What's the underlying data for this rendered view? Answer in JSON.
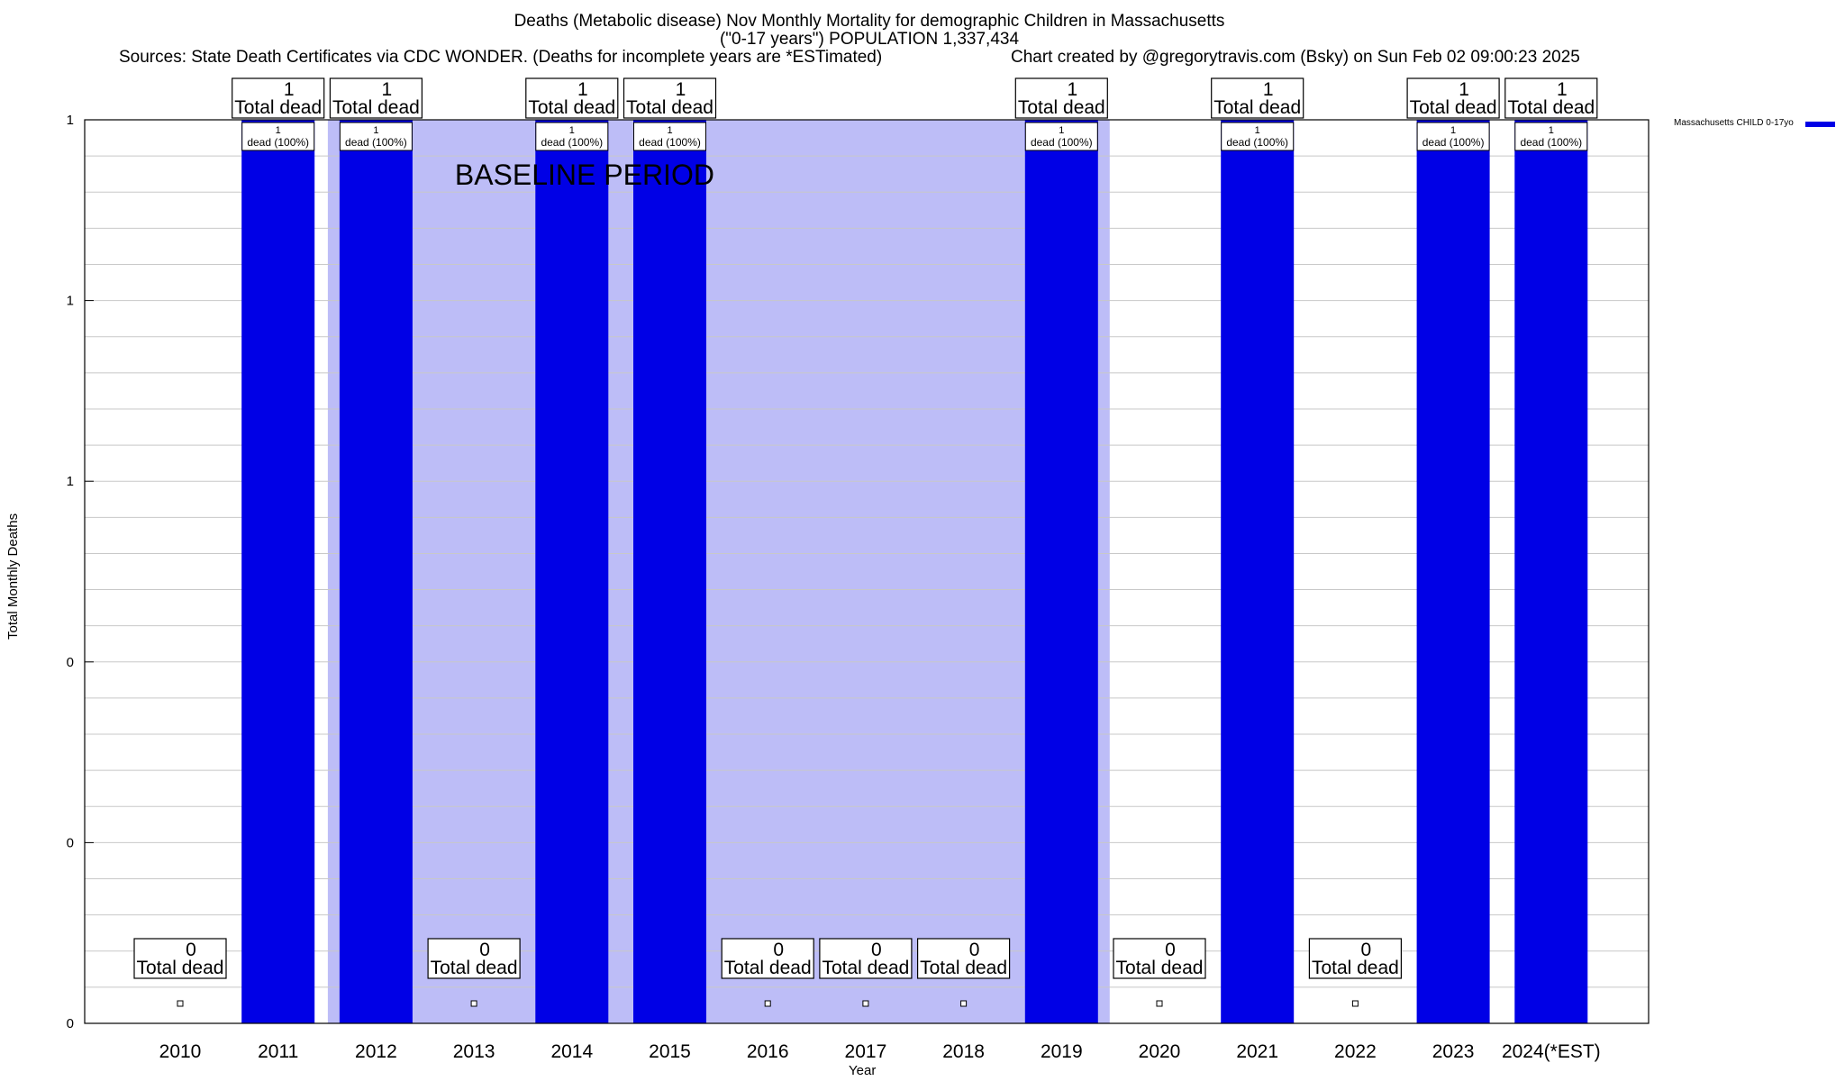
{
  "header": {
    "title_line1": "Deaths (Metabolic disease) Nov Monthly Mortality for demographic Children in Massachusetts",
    "title_line2": "(\"0-17 years\") POPULATION 1,337,434",
    "sources": "Sources: State Death Certificates via CDC WONDER. (Deaths for incomplete years are *ESTimated)",
    "credit": "Chart created by @gregorytravis.com (Bsky) on Sun Feb 02 09:00:23 2025"
  },
  "colors": {
    "bar": "#0000e6",
    "baseline": "#bdbdf7",
    "grid": "#c8c8c8"
  },
  "chart_data": {
    "type": "bar",
    "xlabel": "Year",
    "ylabel": "Total Monthly Deaths",
    "ylim": [
      0,
      1
    ],
    "y_tick_labels": [
      "0",
      "0",
      "0",
      "1",
      "1",
      "1"
    ],
    "categories": [
      "2010",
      "2011",
      "2012",
      "2013",
      "2014",
      "2015",
      "2016",
      "2017",
      "2018",
      "2019",
      "2020",
      "2021",
      "2022",
      "2023",
      "2024(*EST)"
    ],
    "series": [
      {
        "name": "Massachusetts CHILD 0-17yo",
        "values": [
          0,
          1,
          1,
          0,
          1,
          1,
          0,
          0,
          0,
          1,
          0,
          1,
          0,
          1,
          1
        ]
      }
    ],
    "top_label_numbers": [
      "0",
      "1",
      "1",
      "0",
      "1",
      "1",
      "0",
      "0",
      "0",
      "1",
      "0",
      "1",
      "0",
      "1",
      "1"
    ],
    "top_label_text": "Total dead",
    "bar_labels": [
      "",
      "1\ndead (100%)",
      "1\ndead (100%)",
      "",
      "1\ndead (100%)",
      "1\ndead (100%)",
      "",
      "",
      "",
      "1\ndead (100%)",
      "",
      "1\ndead (100%)",
      "",
      "1\ndead (100%)",
      "1\ndead (100%)"
    ],
    "baseline_period": {
      "label": "BASELINE PERIOD",
      "from_year": "2012",
      "to_year": "2019"
    },
    "grid": true,
    "legend_position": "top-right"
  }
}
